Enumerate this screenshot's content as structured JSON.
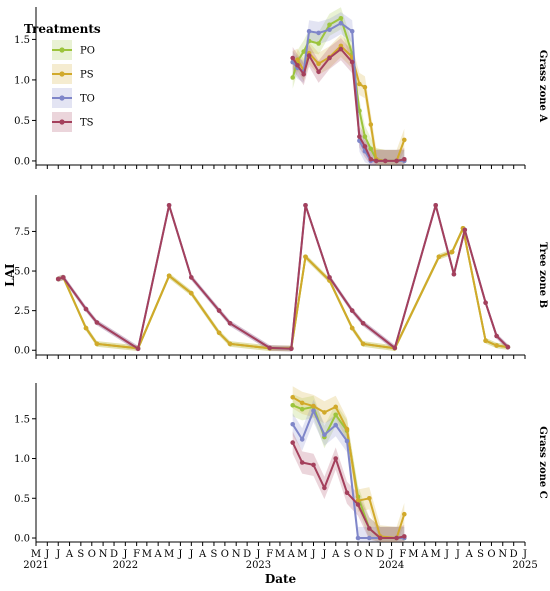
{
  "chart_data": {
    "type": "line",
    "xlabel": "Date",
    "ylabel": "LAI",
    "legend": {
      "title": "Treatments",
      "placement": "top-left",
      "entries": [
        "PO",
        "PS",
        "TO",
        "TS"
      ]
    },
    "colors": {
      "PO": "#9cc43c",
      "PS": "#d1a92a",
      "TO": "#7f86c9",
      "TS": "#a4405c"
    },
    "x_range": [
      "2021-05-01",
      "2025-01-01"
    ],
    "x_month_ticks": [
      "M",
      "J",
      "J",
      "A",
      "S",
      "O",
      "N",
      "D",
      "J",
      "F",
      "M",
      "A",
      "M",
      "J",
      "J",
      "A",
      "S",
      "O",
      "N",
      "D",
      "J",
      "F",
      "M",
      "A",
      "M",
      "J",
      "J",
      "A",
      "S",
      "O",
      "N",
      "D",
      "J",
      "F",
      "M",
      "A",
      "M",
      "J",
      "J",
      "A",
      "S",
      "O",
      "N",
      "D",
      "J"
    ],
    "x_year_labels": [
      "2021",
      "2022",
      "2023",
      "2024",
      "2025"
    ],
    "panels": [
      {
        "strip": "Grass zone A",
        "ylim": [
          -0.05,
          1.9
        ],
        "yticks": [
          0.0,
          0.5,
          1.0,
          1.5
        ],
        "ytick_labels": [
          "0.0",
          "0.5",
          "1.0",
          "1.5"
        ],
        "series": [
          {
            "name": "PO",
            "points": [
              [
                "2023-04-05",
                1.03
              ],
              [
                "2023-04-18",
                1.23
              ],
              [
                "2023-05-05",
                1.35
              ],
              [
                "2023-05-20",
                1.48
              ],
              [
                "2023-06-15",
                1.45
              ],
              [
                "2023-07-15",
                1.68
              ],
              [
                "2023-08-15",
                1.76
              ],
              [
                "2023-09-15",
                1.32
              ],
              [
                "2023-10-05",
                0.62
              ],
              [
                "2023-10-20",
                0.3
              ],
              [
                "2023-11-05",
                0.15
              ],
              [
                "2023-11-20",
                0.02
              ],
              [
                "2023-12-15",
                0.0
              ],
              [
                "2024-01-15",
                0.0
              ],
              [
                "2024-02-05",
                0.0
              ]
            ]
          },
          {
            "name": "PS",
            "points": [
              [
                "2023-04-05",
                1.22
              ],
              [
                "2023-04-18",
                1.25
              ],
              [
                "2023-05-05",
                1.12
              ],
              [
                "2023-05-20",
                1.33
              ],
              [
                "2023-06-15",
                1.2
              ],
              [
                "2023-07-15",
                1.28
              ],
              [
                "2023-08-15",
                1.42
              ],
              [
                "2023-09-15",
                1.28
              ],
              [
                "2023-10-05",
                0.95
              ],
              [
                "2023-10-20",
                0.91
              ],
              [
                "2023-11-05",
                0.45
              ],
              [
                "2023-11-20",
                0.02
              ],
              [
                "2023-12-15",
                0.0
              ],
              [
                "2024-01-15",
                0.0
              ],
              [
                "2024-02-05",
                0.26
              ]
            ]
          },
          {
            "name": "TO",
            "points": [
              [
                "2023-04-05",
                1.22
              ],
              [
                "2023-04-18",
                1.15
              ],
              [
                "2023-05-05",
                1.1
              ],
              [
                "2023-05-20",
                1.6
              ],
              [
                "2023-06-15",
                1.58
              ],
              [
                "2023-07-15",
                1.62
              ],
              [
                "2023-08-15",
                1.7
              ],
              [
                "2023-09-15",
                1.6
              ],
              [
                "2023-10-05",
                0.25
              ],
              [
                "2023-10-20",
                0.12
              ],
              [
                "2023-11-05",
                0.0
              ],
              [
                "2023-11-20",
                0.0
              ],
              [
                "2023-12-15",
                0.0
              ],
              [
                "2024-01-15",
                0.0
              ],
              [
                "2024-02-05",
                0.0
              ]
            ]
          },
          {
            "name": "TS",
            "points": [
              [
                "2023-04-05",
                1.27
              ],
              [
                "2023-04-18",
                1.18
              ],
              [
                "2023-05-05",
                1.07
              ],
              [
                "2023-05-20",
                1.3
              ],
              [
                "2023-06-15",
                1.1
              ],
              [
                "2023-07-15",
                1.27
              ],
              [
                "2023-08-15",
                1.38
              ],
              [
                "2023-09-15",
                1.22
              ],
              [
                "2023-10-05",
                0.3
              ],
              [
                "2023-10-20",
                0.18
              ],
              [
                "2023-11-05",
                0.02
              ],
              [
                "2023-11-20",
                0.0
              ],
              [
                "2023-12-15",
                0.0
              ],
              [
                "2024-01-15",
                0.0
              ],
              [
                "2024-02-05",
                0.02
              ]
            ]
          }
        ]
      },
      {
        "strip": "Tree zone B",
        "ylim": [
          -0.3,
          9.8
        ],
        "yticks": [
          0.0,
          2.5,
          5.0,
          7.5
        ],
        "ytick_labels": [
          "0.0",
          "2.5",
          "5.0",
          "7.5"
        ],
        "series": [
          {
            "name": "PO",
            "points": [
              [
                "2021-07-01",
                4.5
              ],
              [
                "2021-07-15",
                4.6
              ],
              [
                "2021-09-15",
                1.4
              ],
              [
                "2021-10-15",
                0.4
              ],
              [
                "2022-02-05",
                0.12
              ],
              [
                "2022-05-01",
                4.7
              ],
              [
                "2022-07-01",
                3.6
              ],
              [
                "2022-09-15",
                1.1
              ],
              [
                "2022-10-15",
                0.4
              ],
              [
                "2023-02-01",
                0.12
              ],
              [
                "2023-04-01",
                0.12
              ],
              [
                "2023-05-10",
                5.9
              ],
              [
                "2023-07-15",
                4.4
              ],
              [
                "2023-09-15",
                1.4
              ],
              [
                "2023-10-15",
                0.4
              ],
              [
                "2024-01-10",
                0.12
              ],
              [
                "2024-05-10",
                5.9
              ],
              [
                "2024-06-15",
                6.2
              ],
              [
                "2024-07-15",
                7.7
              ],
              [
                "2024-09-15",
                0.6
              ],
              [
                "2024-10-15",
                0.3
              ],
              [
                "2024-11-15",
                0.2
              ]
            ]
          },
          {
            "name": "PS",
            "points": [
              [
                "2021-07-01",
                4.5
              ],
              [
                "2021-07-15",
                4.6
              ],
              [
                "2021-09-15",
                1.4
              ],
              [
                "2021-10-15",
                0.4
              ],
              [
                "2022-02-05",
                0.12
              ],
              [
                "2022-05-01",
                4.7
              ],
              [
                "2022-07-01",
                3.6
              ],
              [
                "2022-09-15",
                1.1
              ],
              [
                "2022-10-15",
                0.4
              ],
              [
                "2023-02-01",
                0.12
              ],
              [
                "2023-04-01",
                0.12
              ],
              [
                "2023-05-10",
                5.9
              ],
              [
                "2023-07-15",
                4.4
              ],
              [
                "2023-09-15",
                1.4
              ],
              [
                "2023-10-15",
                0.4
              ],
              [
                "2024-01-10",
                0.12
              ],
              [
                "2024-05-10",
                5.9
              ],
              [
                "2024-06-15",
                6.2
              ],
              [
                "2024-07-15",
                7.7
              ],
              [
                "2024-09-15",
                0.6
              ],
              [
                "2024-10-15",
                0.3
              ],
              [
                "2024-11-15",
                0.2
              ]
            ]
          },
          {
            "name": "TO",
            "points": [
              [
                "2021-07-01",
                4.5
              ],
              [
                "2021-07-15",
                4.6
              ],
              [
                "2021-09-15",
                2.6
              ],
              [
                "2021-10-15",
                1.75
              ],
              [
                "2022-02-05",
                0.1
              ],
              [
                "2022-05-01",
                9.15
              ],
              [
                "2022-07-01",
                4.6
              ],
              [
                "2022-09-15",
                2.5
              ],
              [
                "2022-10-15",
                1.7
              ],
              [
                "2023-02-01",
                0.15
              ],
              [
                "2023-04-01",
                0.1
              ],
              [
                "2023-05-10",
                9.15
              ],
              [
                "2023-07-15",
                4.6
              ],
              [
                "2023-09-15",
                2.5
              ],
              [
                "2023-10-15",
                1.7
              ],
              [
                "2024-01-10",
                0.15
              ],
              [
                "2024-05-01",
                9.15
              ],
              [
                "2024-06-20",
                4.8
              ],
              [
                "2024-07-20",
                7.6
              ],
              [
                "2024-09-15",
                3.0
              ],
              [
                "2024-10-15",
                0.9
              ],
              [
                "2024-11-15",
                0.2
              ]
            ]
          },
          {
            "name": "TS",
            "points": [
              [
                "2021-07-01",
                4.5
              ],
              [
                "2021-07-15",
                4.6
              ],
              [
                "2021-09-15",
                2.6
              ],
              [
                "2021-10-15",
                1.75
              ],
              [
                "2022-02-05",
                0.1
              ],
              [
                "2022-05-01",
                9.15
              ],
              [
                "2022-07-01",
                4.6
              ],
              [
                "2022-09-15",
                2.5
              ],
              [
                "2022-10-15",
                1.7
              ],
              [
                "2023-02-01",
                0.15
              ],
              [
                "2023-04-01",
                0.1
              ],
              [
                "2023-05-10",
                9.15
              ],
              [
                "2023-07-15",
                4.6
              ],
              [
                "2023-09-15",
                2.5
              ],
              [
                "2023-10-15",
                1.7
              ],
              [
                "2024-01-10",
                0.15
              ],
              [
                "2024-05-01",
                9.15
              ],
              [
                "2024-06-20",
                4.8
              ],
              [
                "2024-07-20",
                7.6
              ],
              [
                "2024-09-15",
                3.0
              ],
              [
                "2024-10-15",
                0.9
              ],
              [
                "2024-11-15",
                0.2
              ]
            ]
          }
        ]
      },
      {
        "strip": "Grass zone C",
        "ylim": [
          -0.05,
          1.95
        ],
        "yticks": [
          0.0,
          0.5,
          1.0,
          1.5
        ],
        "ytick_labels": [
          "0.0",
          "0.5",
          "1.0",
          "1.5"
        ],
        "series": [
          {
            "name": "PO",
            "points": [
              [
                "2023-04-05",
                1.67
              ],
              [
                "2023-05-01",
                1.62
              ],
              [
                "2023-06-01",
                1.65
              ],
              [
                "2023-07-01",
                1.27
              ],
              [
                "2023-08-01",
                1.55
              ],
              [
                "2023-09-01",
                1.35
              ],
              [
                "2023-10-01",
                0.52
              ],
              [
                "2023-11-01",
                0.12
              ],
              [
                "2023-12-01",
                0.0
              ],
              [
                "2024-01-15",
                0.0
              ],
              [
                "2024-02-05",
                0.0
              ]
            ]
          },
          {
            "name": "PS",
            "points": [
              [
                "2023-04-05",
                1.77
              ],
              [
                "2023-05-01",
                1.7
              ],
              [
                "2023-06-01",
                1.66
              ],
              [
                "2023-07-01",
                1.58
              ],
              [
                "2023-08-01",
                1.65
              ],
              [
                "2023-09-01",
                1.37
              ],
              [
                "2023-10-01",
                0.47
              ],
              [
                "2023-11-01",
                0.5
              ],
              [
                "2023-12-01",
                0.02
              ],
              [
                "2024-01-15",
                0.0
              ],
              [
                "2024-02-05",
                0.3
              ]
            ]
          },
          {
            "name": "TO",
            "points": [
              [
                "2023-04-05",
                1.43
              ],
              [
                "2023-05-01",
                1.24
              ],
              [
                "2023-06-01",
                1.6
              ],
              [
                "2023-07-01",
                1.3
              ],
              [
                "2023-08-01",
                1.42
              ],
              [
                "2023-09-01",
                1.22
              ],
              [
                "2023-10-01",
                0.0
              ],
              [
                "2023-11-01",
                0.0
              ],
              [
                "2023-12-01",
                0.0
              ],
              [
                "2024-01-15",
                0.0
              ],
              [
                "2024-02-05",
                0.0
              ]
            ]
          },
          {
            "name": "TS",
            "points": [
              [
                "2023-04-05",
                1.2
              ],
              [
                "2023-05-01",
                0.95
              ],
              [
                "2023-06-01",
                0.92
              ],
              [
                "2023-07-01",
                0.63
              ],
              [
                "2023-08-01",
                1.0
              ],
              [
                "2023-09-01",
                0.57
              ],
              [
                "2023-10-01",
                0.42
              ],
              [
                "2023-11-01",
                0.12
              ],
              [
                "2023-12-01",
                0.0
              ],
              [
                "2024-01-15",
                0.0
              ],
              [
                "2024-02-05",
                0.02
              ]
            ]
          }
        ]
      }
    ]
  }
}
